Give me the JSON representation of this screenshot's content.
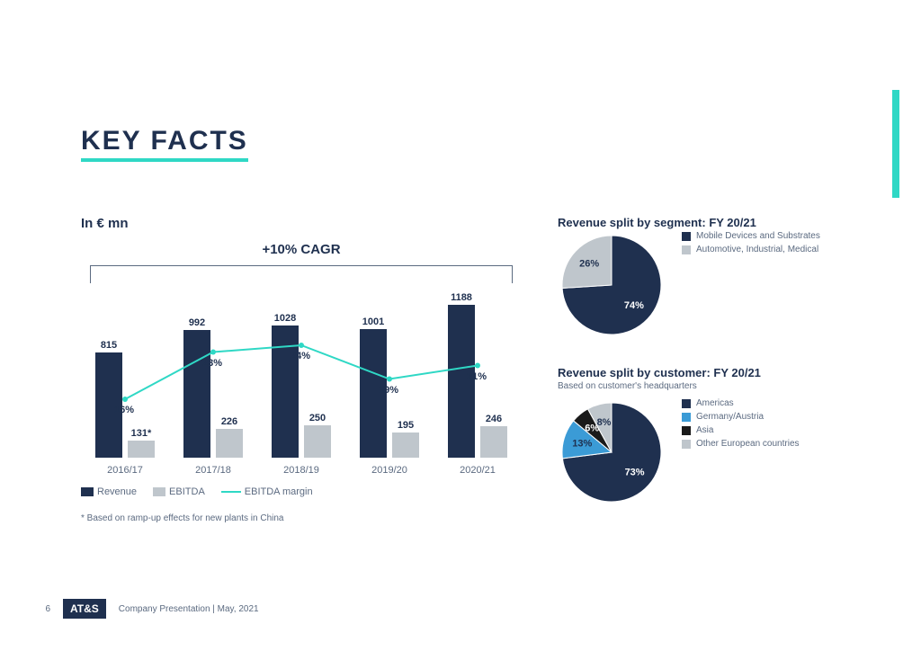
{
  "colors": {
    "navy": "#1f304f",
    "grey": "#bfc6cc",
    "teal": "#2fd8c5",
    "lightblue": "#3b9bd6",
    "black": "#1a1a1a",
    "textgrey": "#5b6a80",
    "white": "#ffffff"
  },
  "title": "KEY FACTS",
  "bar_chart": {
    "subtitle": "In € mn",
    "cagr": "+10% CAGR",
    "max": 1188,
    "years": [
      "2016/17",
      "2017/18",
      "2018/19",
      "2019/20",
      "2020/21"
    ],
    "revenue": [
      815,
      992,
      1028,
      1001,
      1188
    ],
    "ebitda": [
      131,
      226,
      250,
      195,
      246
    ],
    "ebitda_labels": [
      "131*",
      "226",
      "250",
      "195",
      "246"
    ],
    "margin_pct": [
      16,
      23,
      24,
      19,
      21
    ],
    "legend_revenue": "Revenue",
    "legend_ebitda": "EBITDA",
    "legend_margin": "EBITDA margin",
    "footnote": "* Based on ramp-up effects for new plants in China"
  },
  "pie1": {
    "title": "Revenue split by segment: FY 20/21",
    "slices": [
      {
        "label": "Mobile Devices and Substrates",
        "value": 74,
        "color": "#1f304f"
      },
      {
        "label": "Automotive, Industrial, Medical",
        "value": 26,
        "color": "#bfc6cc"
      }
    ]
  },
  "pie2": {
    "title": "Revenue split by customer: FY 20/21",
    "subtitle": "Based on customer's headquarters",
    "slices": [
      {
        "label": "Americas",
        "value": 73,
        "color": "#1f304f"
      },
      {
        "label": "Germany/Austria",
        "value": 13,
        "color": "#3b9bd6"
      },
      {
        "label": "Asia",
        "value": 6,
        "color": "#1a1a1a"
      },
      {
        "label": "Other European countries",
        "value": 8,
        "color": "#bfc6cc"
      }
    ]
  },
  "footer": {
    "page": "6",
    "logo": "AT&S",
    "text": "Company Presentation |  May, 2021"
  }
}
